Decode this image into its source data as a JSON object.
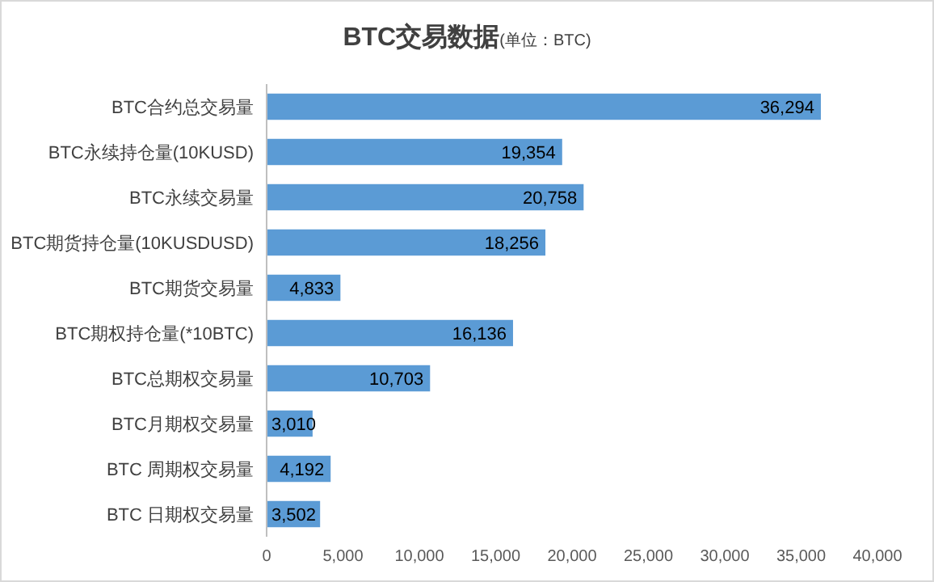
{
  "chart_data": {
    "type": "bar",
    "orientation": "horizontal",
    "title": "BTC交易数据",
    "subtitle": "(单位：BTC)",
    "categories": [
      "BTC合约总交易量",
      "BTC永续持仓量(10KUSD)",
      "BTC永续交易量",
      "BTC期货持仓量(10KUSDUSD)",
      "BTC期货交易量",
      "BTC期权持仓量(*10BTC)",
      "BTC总期权交易量",
      "BTC月期权交易量",
      "BTC 周期权交易量",
      "BTC 日期权交易量"
    ],
    "values": [
      36294,
      19354,
      20758,
      18256,
      4833,
      16136,
      10703,
      3010,
      4192,
      3502
    ],
    "value_labels": [
      "36,294",
      "19,354",
      "20,758",
      "18,256",
      "4,833",
      "16,136",
      "10,703",
      "3,010",
      "4,192",
      "3,502"
    ],
    "color": "#5b9bd5",
    "xlim": [
      0,
      40000
    ],
    "xticks": [
      0,
      {
        "value": 5000,
        "label": "5,000"
      },
      {
        "value": 10000,
        "label": "10,000"
      },
      {
        "value": 15000,
        "label": "15,000"
      },
      {
        "value": 20000,
        "label": "20,000"
      },
      {
        "value": 25000,
        "label": "25,000"
      },
      {
        "value": 30000,
        "label": "30,000"
      },
      {
        "value": 35000,
        "label": "35,000"
      },
      {
        "value": 40000,
        "label": "40,000"
      }
    ]
  }
}
